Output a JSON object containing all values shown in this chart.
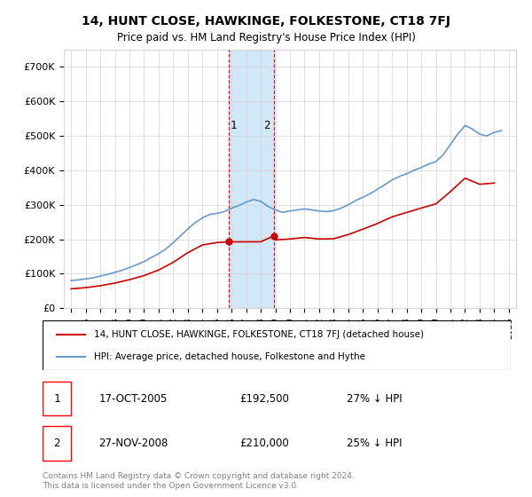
{
  "title": "14, HUNT CLOSE, HAWKINGE, FOLKESTONE, CT18 7FJ",
  "subtitle": "Price paid vs. HM Land Registry's House Price Index (HPI)",
  "legend_house": "14, HUNT CLOSE, HAWKINGE, FOLKESTONE, CT18 7FJ (detached house)",
  "legend_hpi": "HPI: Average price, detached house, Folkestone and Hythe",
  "transaction1_label": "1",
  "transaction1_date": "17-OCT-2005",
  "transaction1_price": "£192,500",
  "transaction1_hpi": "27% ↓ HPI",
  "transaction2_label": "2",
  "transaction2_date": "27-NOV-2008",
  "transaction2_price": "£210,000",
  "transaction2_hpi": "25% ↓ HPI",
  "footnote": "Contains HM Land Registry data © Crown copyright and database right 2024.\nThis data is licensed under the Open Government Licence v3.0.",
  "house_color": "#cc0000",
  "hpi_color": "#6699cc",
  "shade_color": "#d0e8f8",
  "ylim": [
    0,
    750000
  ],
  "yticks": [
    0,
    100000,
    200000,
    300000,
    400000,
    500000,
    600000,
    700000
  ],
  "ytick_labels": [
    "£0",
    "£100K",
    "£200K",
    "£300K",
    "£400K",
    "£500K",
    "£600K",
    "£700K"
  ],
  "vline1_year": 2005.8,
  "vline2_year": 2008.9,
  "transaction1_year": 2005.8,
  "transaction1_value": 192500,
  "transaction2_year": 2008.9,
  "transaction2_value": 210000
}
